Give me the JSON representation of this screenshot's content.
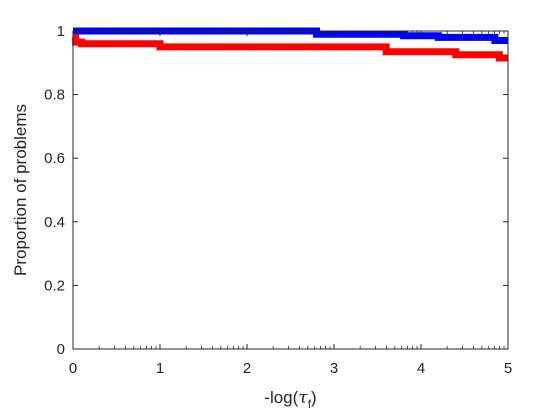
{
  "chart_data": {
    "type": "line",
    "title": "",
    "xlabel_main": "-log(",
    "xlabel_tau": "τ",
    "xlabel_sub": "f",
    "xlabel_close": ")",
    "ylabel": "Proportion of problems",
    "xlim": [
      0,
      5
    ],
    "ylim": [
      0,
      1
    ],
    "xticks": [
      0,
      1,
      2,
      3,
      4,
      5
    ],
    "yticks": [
      0,
      0.2,
      0.4,
      0.6,
      0.8,
      1
    ],
    "xtick_labels": [
      "0",
      "1",
      "2",
      "3",
      "4",
      "5"
    ],
    "ytick_labels": [
      "0",
      "0.2",
      "0.4",
      "0.6",
      "0.8",
      "1"
    ],
    "grid": false,
    "legend": "none",
    "series": [
      {
        "color": "#0000ff",
        "x": [
          0,
          2.8,
          2.8,
          3.8,
          3.8,
          4.2,
          4.2,
          4.85,
          4.85,
          5
        ],
        "y": [
          1.0,
          1.0,
          0.99,
          0.99,
          0.985,
          0.985,
          0.98,
          0.98,
          0.97,
          0.97
        ]
      },
      {
        "color": "#ff0000",
        "x": [
          0,
          0.03,
          0.03,
          0.1,
          0.1,
          1.0,
          1.0,
          3.6,
          3.6,
          4.4,
          4.4,
          4.9,
          4.9,
          5
        ],
        "y": [
          0.98,
          0.98,
          0.965,
          0.965,
          0.96,
          0.96,
          0.95,
          0.95,
          0.935,
          0.935,
          0.925,
          0.925,
          0.915,
          0.915
        ]
      }
    ]
  }
}
